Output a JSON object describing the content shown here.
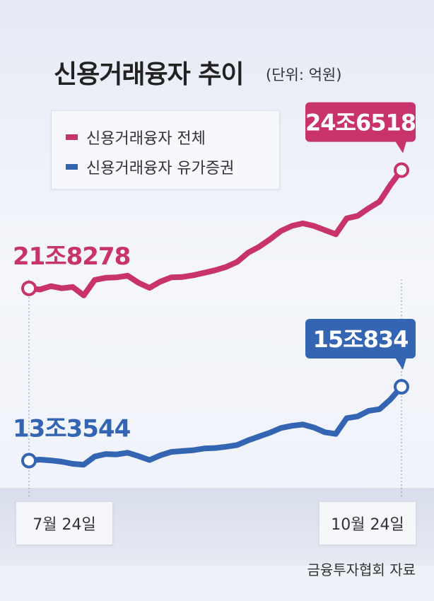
{
  "title": "신용거래융자 추이",
  "unit": "(단위: 억원)",
  "source": "금융투자협회 자료",
  "colors": {
    "total": "#c8336b",
    "securities": "#3465b3"
  },
  "chart_data": {
    "type": "line",
    "title": "신용거래융자 추이",
    "unit": "억원",
    "x_labels": [
      "7월 24일",
      "10월 24일"
    ],
    "legend_placement": "top-left",
    "series": [
      {
        "name": "신용거래융자 전체",
        "color": "#c8336b",
        "start_label": "21조8278",
        "end_label": "24조6518",
        "values": [
          218278,
          218000,
          218800,
          218300,
          218600,
          216600,
          220300,
          220800,
          220900,
          221300,
          219600,
          218400,
          219900,
          220900,
          221000,
          221400,
          222000,
          222600,
          223400,
          224600,
          226800,
          228200,
          230000,
          232000,
          233200,
          233800,
          233200,
          232200,
          231200,
          235000,
          235600,
          237400,
          239000,
          243000,
          246518
        ]
      },
      {
        "name": "신용거래융자 유가증권",
        "color": "#3465b3",
        "start_label": "13조3544",
        "end_label": "15조834",
        "values": [
          133544,
          133800,
          133600,
          133300,
          132800,
          132600,
          134500,
          135100,
          135000,
          135400,
          134600,
          133700,
          134800,
          135600,
          135800,
          136000,
          136400,
          136500,
          136800,
          137200,
          138300,
          139200,
          140100,
          141200,
          141700,
          142000,
          141300,
          140200,
          139800,
          143500,
          143900,
          145200,
          145600,
          147900,
          150834
        ]
      }
    ]
  }
}
